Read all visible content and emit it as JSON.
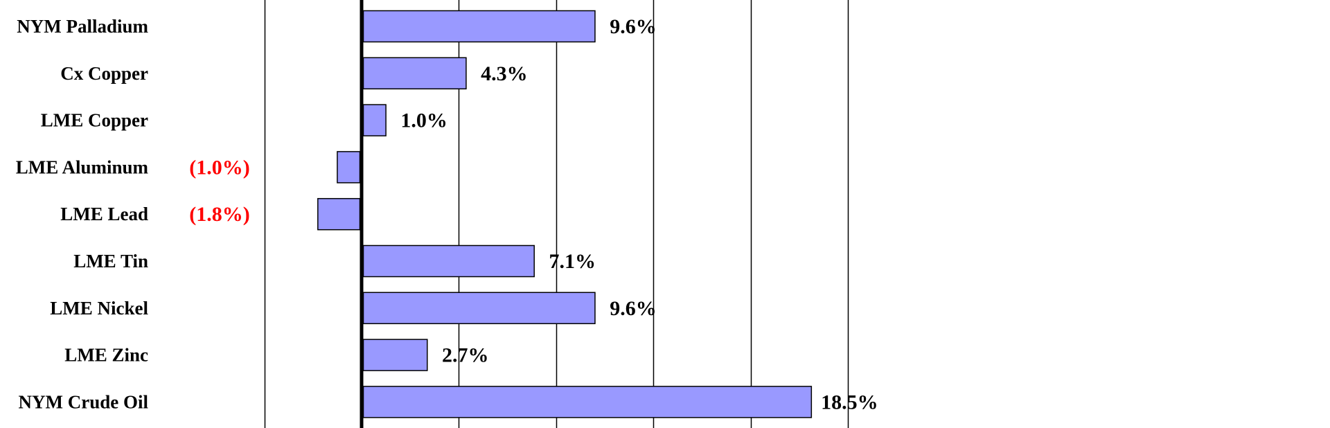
{
  "chart_data": {
    "type": "bar",
    "orientation": "horizontal",
    "categories": [
      "NYM Palladium",
      "Cx Copper",
      "LME Copper",
      "LME Aluminum",
      "LME Lead",
      "LME Tin",
      "LME Nickel",
      "LME Zinc",
      "NYM Crude Oil"
    ],
    "values": [
      9.6,
      4.3,
      1.0,
      -1.0,
      -1.8,
      7.1,
      9.6,
      2.7,
      18.5
    ],
    "data_labels": [
      "9.6%",
      "4.3%",
      "1.0%",
      "(1.0%)",
      "(1.8%)",
      "7.1%",
      "9.6%",
      "2.7%",
      "18.5%"
    ],
    "xlim": [
      -4,
      20
    ],
    "grid": true,
    "bar_color": "#9999ff",
    "bar_border_color": "#000000",
    "positive_label_color": "#000000",
    "negative_label_color": "#ff0000",
    "title": "",
    "xlabel": "",
    "ylabel": ""
  }
}
